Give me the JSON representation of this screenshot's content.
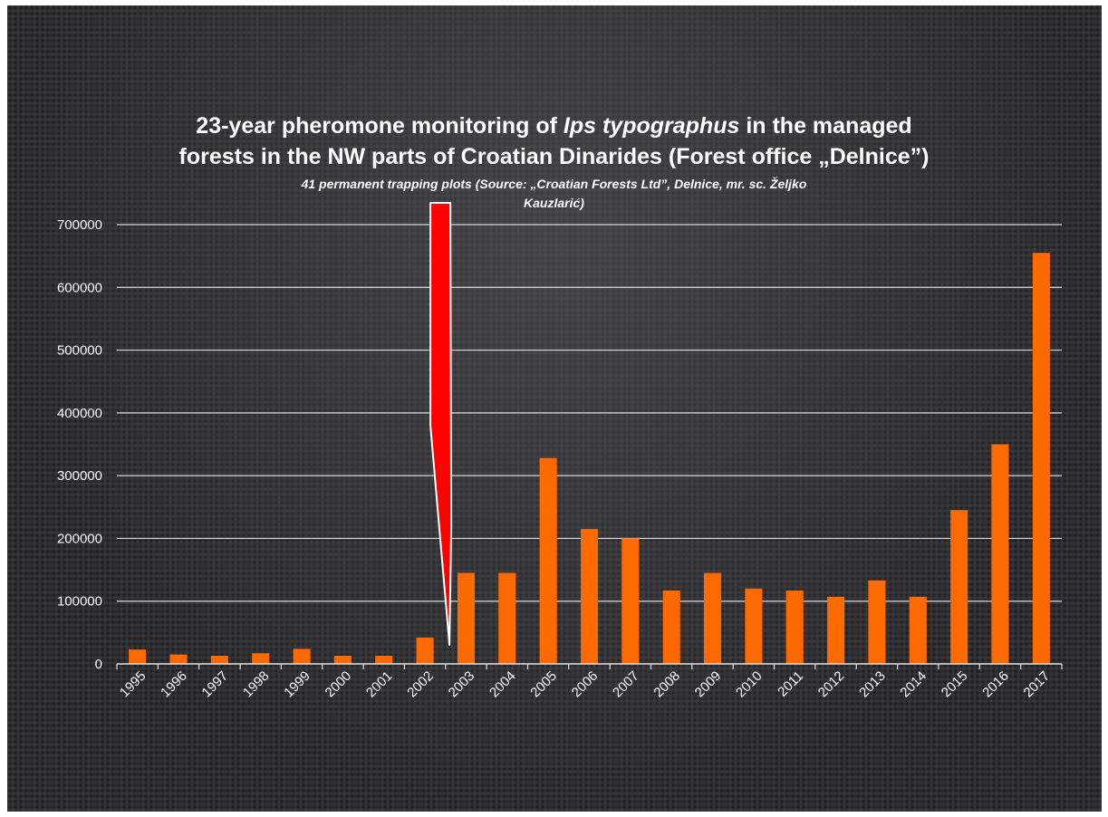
{
  "chart_data": {
    "type": "bar",
    "title_line1_pre": "23-year pheromone monitoring of ",
    "title_line1_italic": "Ips typographus",
    "title_line1_post": " in the managed",
    "title_line2": "forests in the NW parts of Croatian Dinarides (Forest office „Delnice”)",
    "subtitle_line1": "41 permanent trapping plots (Source: „Croatian Forests Ltd”, Delnice, mr. sc. Željko",
    "subtitle_line2": "Kauzlarić)",
    "xlabel": "",
    "ylabel": "",
    "categories": [
      "1995",
      "1996",
      "1997",
      "1998",
      "1999",
      "2000",
      "2001",
      "2002",
      "2003",
      "2004",
      "2005",
      "2006",
      "2007",
      "2008",
      "2009",
      "2010",
      "2011",
      "2012",
      "2013",
      "2014",
      "2015",
      "2016",
      "2017"
    ],
    "values": [
      23000,
      15000,
      13000,
      17000,
      24000,
      13000,
      13000,
      42000,
      145000,
      145000,
      328000,
      215000,
      200000,
      117000,
      145000,
      120000,
      117000,
      107000,
      133000,
      107000,
      245000,
      350000,
      655000
    ],
    "ylim": [
      0,
      700000
    ],
    "yticks": [
      "0",
      "100000",
      "200000",
      "300000",
      "400000",
      "500000",
      "600000",
      "700000"
    ],
    "grid": true,
    "bar_color": "#ff6a00",
    "annotation_color": "#ff0000",
    "annotation_target_category": "2002"
  }
}
